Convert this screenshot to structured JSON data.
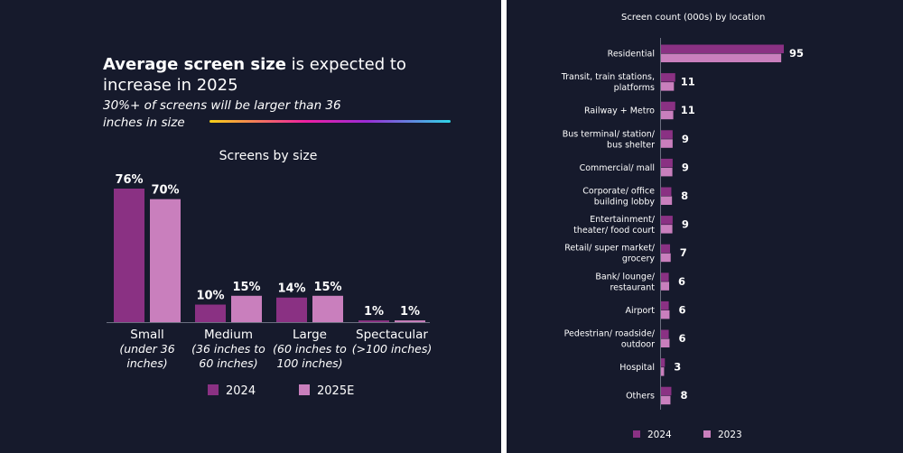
{
  "left": {
    "headline_bold": "Average screen size",
    "headline_rest": " is expected to increase in 2025",
    "subline": "30%+ of screens will be larger than 36 inches in size"
  },
  "colors": {
    "background": "#161a2c",
    "series_dark": "#8a3183",
    "series_light": "#c97fbd",
    "text": "#ffffff"
  },
  "chart_data": [
    {
      "type": "bar",
      "title": "Screens by size",
      "categories": [
        "Small",
        "Medium",
        "Large",
        "Spectacular"
      ],
      "category_sublabels": [
        "(under 36 inches)",
        "(36 inches to 60 inches)",
        "(60 inches to 100 inches)",
        "(>100 inches)"
      ],
      "series": [
        {
          "name": "2024",
          "values": [
            76,
            10,
            14,
            1
          ],
          "labels": [
            "76%",
            "10%",
            "14%",
            "1%"
          ],
          "color": "#8a3183"
        },
        {
          "name": "2025E",
          "values": [
            70,
            15,
            15,
            1
          ],
          "labels": [
            "70%",
            "15%",
            "15%",
            "1%"
          ],
          "color": "#c97fbd"
        }
      ],
      "ylim": [
        0,
        76
      ],
      "legend": "bottom",
      "grid": false
    },
    {
      "type": "bar",
      "orientation": "horizontal",
      "title": "Screen count (000s) by location",
      "categories": [
        [
          "Residential"
        ],
        [
          "Transit, train stations,",
          "platforms"
        ],
        [
          "Railway + Metro"
        ],
        [
          "Bus terminal/ station/",
          "bus shelter"
        ],
        [
          "Commercial/ mall"
        ],
        [
          "Corporate/ office",
          "building lobby"
        ],
        [
          "Entertainment/",
          "theater/ food court"
        ],
        [
          "Retail/ super market/",
          "grocery"
        ],
        [
          "Bank/ lounge/",
          "restaurant"
        ],
        [
          "Airport"
        ],
        [
          "Pedestrian/ roadside/",
          "outdoor"
        ],
        [
          "Hospital"
        ],
        [
          "Others"
        ]
      ],
      "series": [
        {
          "name": "2024",
          "values": [
            95,
            11,
            11,
            9,
            9,
            8,
            9,
            7,
            6,
            6,
            6,
            3,
            8
          ],
          "color": "#8a3183"
        },
        {
          "name": "2023",
          "values": [
            93,
            10,
            9.5,
            9,
            8.8,
            8.5,
            8.8,
            7.5,
            6.3,
            6.6,
            6.6,
            2.4,
            7.3
          ],
          "color": "#c97fbd"
        }
      ],
      "value_labels": [
        "95",
        "11",
        "11",
        "9",
        "9",
        "8",
        "9",
        "7",
        "6",
        "6",
        "6",
        "3",
        "8"
      ],
      "xlim": [
        0,
        95
      ],
      "legend": "bottom",
      "grid": false
    }
  ]
}
